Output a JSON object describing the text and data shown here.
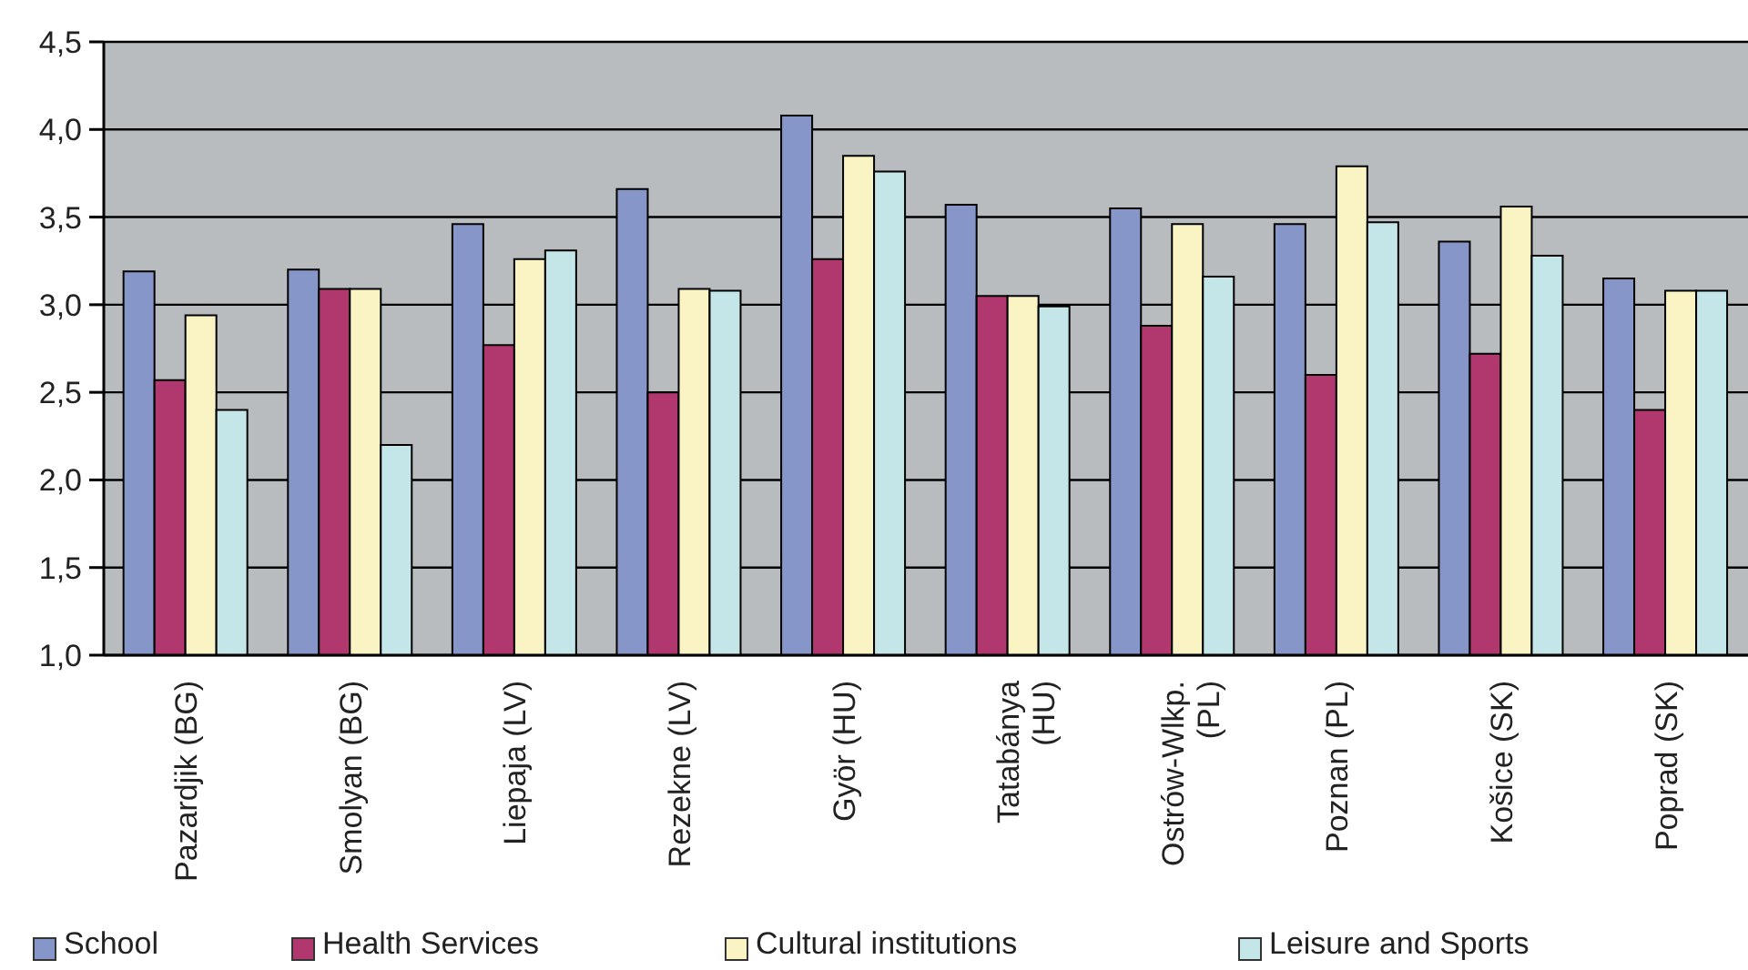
{
  "chart_data": {
    "type": "bar",
    "categories": [
      "Pazardjik (BG)",
      "Smolyan (BG)",
      "Liepaja (LV)",
      "Rezekne (LV)",
      "Györ (HU)",
      "Tatabánya\n(HU)",
      "Ostrów-Wlkp.\n(PL)",
      "Poznan (PL)",
      "Košice (SK)",
      "Poprad (SK)"
    ],
    "series": [
      {
        "name": "School",
        "color": "#8696c8",
        "values": [
          3.19,
          3.2,
          3.46,
          3.66,
          4.08,
          3.57,
          3.55,
          3.46,
          3.36,
          3.15
        ]
      },
      {
        "name": "Health Services",
        "color": "#b0386e",
        "values": [
          2.57,
          3.09,
          2.77,
          2.5,
          3.26,
          3.05,
          2.88,
          2.6,
          2.72,
          2.4
        ]
      },
      {
        "name": "Cultural institutions",
        "color": "#faf4c4",
        "values": [
          2.94,
          3.09,
          3.26,
          3.09,
          3.85,
          3.05,
          3.46,
          3.79,
          3.56,
          3.08
        ]
      },
      {
        "name": "Leisure and Sports",
        "color": "#c4e6e8",
        "values": [
          2.4,
          2.2,
          3.31,
          3.08,
          3.76,
          2.99,
          3.16,
          3.47,
          3.28,
          3.08
        ]
      }
    ],
    "ylim": [
      1,
      4.5
    ],
    "yticks": [
      {
        "value": 1,
        "label": "1,0"
      },
      {
        "value": 1.5,
        "label": "1,5"
      },
      {
        "value": 2,
        "label": "2,0"
      },
      {
        "value": 2.5,
        "label": "2,5"
      },
      {
        "value": 3,
        "label": "3,0"
      },
      {
        "value": 3.5,
        "label": "3,5"
      },
      {
        "value": 4,
        "label": "4,0"
      },
      {
        "value": 4.5,
        "label": "4,5"
      }
    ],
    "grid": "y",
    "legend": "bottom"
  }
}
